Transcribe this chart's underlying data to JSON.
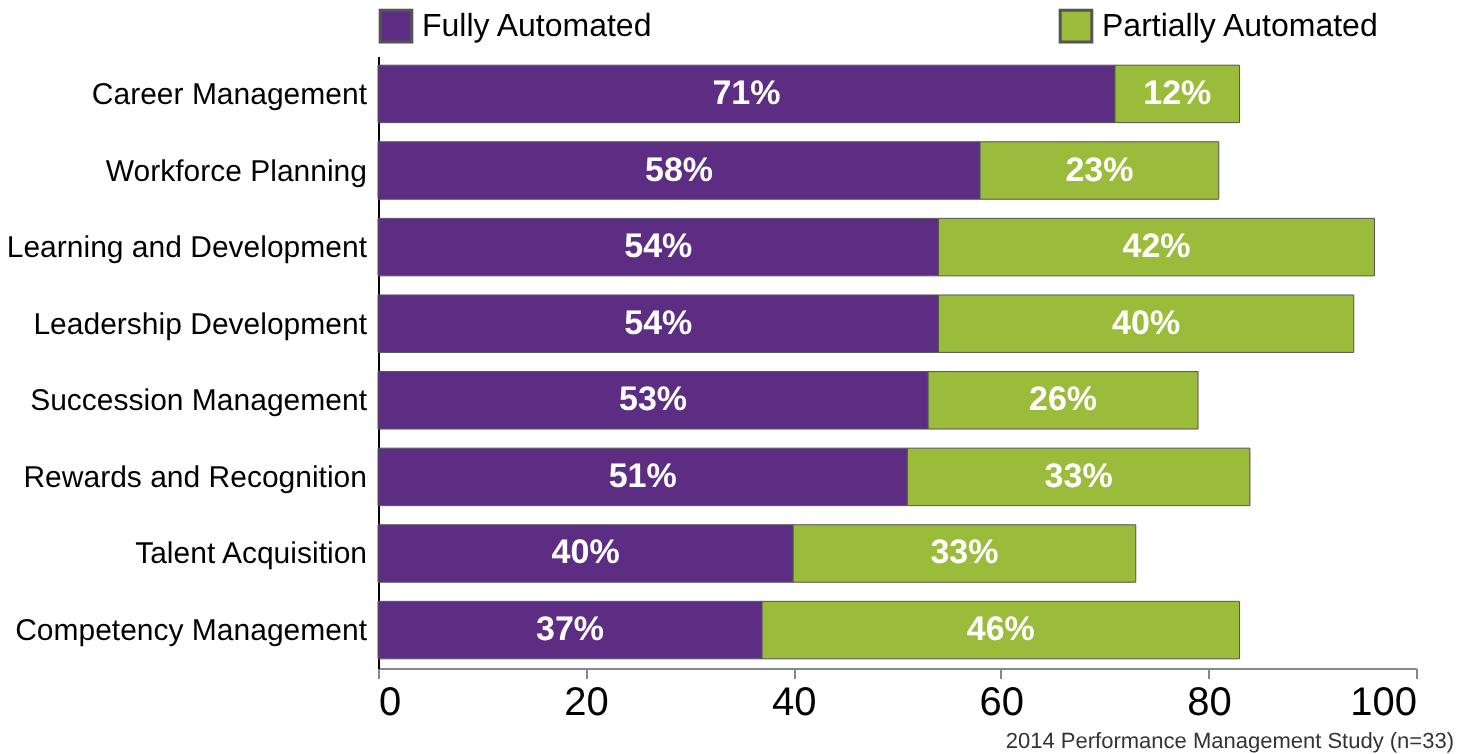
{
  "chart_data": {
    "type": "bar",
    "orientation": "horizontal",
    "stacked": true,
    "categories": [
      "Career Management",
      "Workforce Planning",
      "Learning and Development",
      "Leadership Development",
      "Succession Management",
      "Rewards and Recognition",
      "Talent Acquisition",
      "Competency Management"
    ],
    "series": [
      {
        "name": "Fully Automated",
        "color": "#5c2d83",
        "values": [
          71,
          58,
          54,
          54,
          53,
          51,
          40,
          37
        ],
        "value_labels": [
          "71%",
          "58%",
          "54%",
          "54%",
          "53%",
          "51%",
          "40%",
          "37%"
        ]
      },
      {
        "name": "Partially Automated",
        "color": "#9bbb3b",
        "values": [
          12,
          23,
          42,
          40,
          26,
          33,
          33,
          46
        ],
        "value_labels": [
          "12%",
          "23%",
          "42%",
          "40%",
          "26%",
          "33%",
          "33%",
          "46%"
        ]
      }
    ],
    "xlim": [
      0,
      100
    ],
    "xticks": [
      0,
      20,
      40,
      60,
      80,
      100
    ],
    "legend": "top",
    "grid": false,
    "annotations": [
      "2014 Performance Management Study (n=33)"
    ]
  }
}
